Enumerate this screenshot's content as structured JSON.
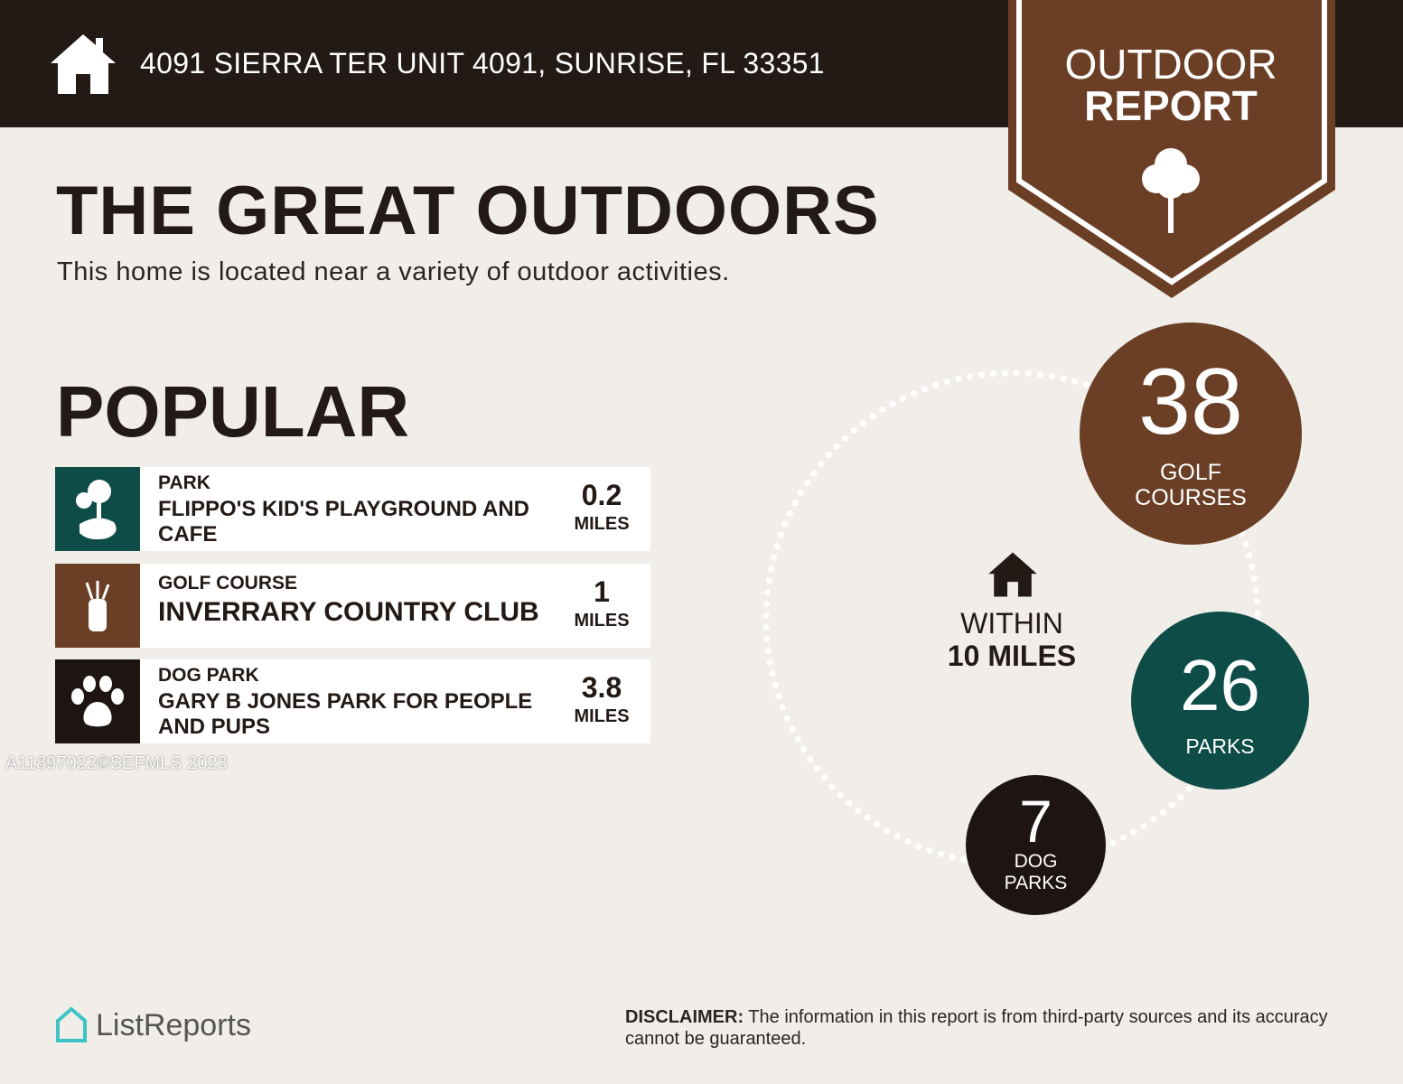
{
  "header": {
    "address": "4091 SIERRA TER UNIT 4091, SUNRISE, FL 33351",
    "badge_line1": "OUTDOOR",
    "badge_line2": "REPORT"
  },
  "title": "THE GREAT OUTDOORS",
  "subtitle": "This home is located near a variety of outdoor activities.",
  "popular": {
    "heading": "POPULAR",
    "items": [
      {
        "category": "PARK",
        "name": "FLIPPO'S KID'S PLAYGROUND AND CAFE",
        "distance": "0.2",
        "unit": "MILES",
        "icon": "park-trees-icon",
        "color": "#0d4c47"
      },
      {
        "category": "GOLF COURSE",
        "name": "INVERRARY COUNTRY CLUB",
        "distance": "1",
        "unit": "MILES",
        "icon": "golf-bag-icon",
        "color": "#6b3f26"
      },
      {
        "category": "DOG PARK",
        "name": "GARY B JONES PARK FOR PEOPLE AND PUPS",
        "distance": "3.8",
        "unit": "MILES",
        "icon": "paw-icon",
        "color": "#1e1512"
      }
    ]
  },
  "watermark": "A11897022©SEFMLS 2023",
  "summary": {
    "within_line1": "WITHIN",
    "within_line2": "10 MILES",
    "golf": {
      "count": "38",
      "label1": "GOLF",
      "label2": "COURSES",
      "color": "#6b3f26"
    },
    "parks": {
      "count": "26",
      "label1": "PARKS",
      "color": "#0d4c47"
    },
    "dog": {
      "count": "7",
      "label1": "DOG",
      "label2": "PARKS",
      "color": "#1e1512"
    }
  },
  "footer": {
    "logo": "ListReports",
    "disclaimer_bold": "DISCLAIMER:",
    "disclaimer": " The information in this report is from third-party sources and its accuracy cannot be guaranteed."
  }
}
